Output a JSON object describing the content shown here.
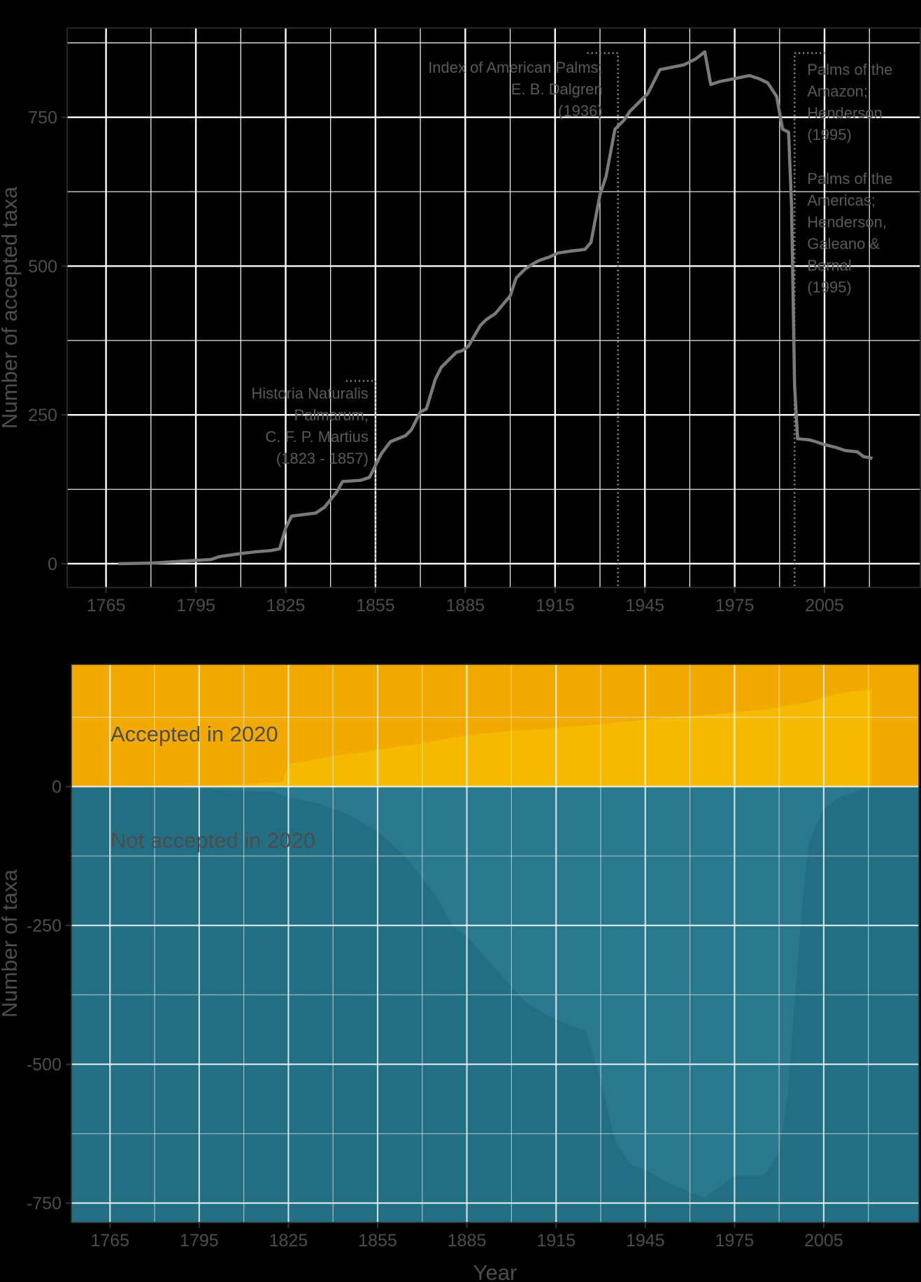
{
  "chart_data": [
    {
      "type": "line",
      "ylabel": "Number of accepted taxa",
      "xlabel": "",
      "xlim": [
        1752,
        2037
      ],
      "ylim": [
        -40,
        900
      ],
      "x_ticks": [
        1765,
        1795,
        1825,
        1855,
        1885,
        1915,
        1945,
        1975,
        2005
      ],
      "x_tick_labels": [
        "1765",
        "1795",
        "1825",
        "1855",
        "1885",
        "1915",
        "1945",
        "1975",
        "2005"
      ],
      "y_ticks": [
        0,
        250,
        500,
        750
      ],
      "y_tick_labels": [
        "0",
        "250",
        "500",
        "750"
      ],
      "grid": true,
      "line_color": "#7a7a7a",
      "series": [
        {
          "x": [
            1769,
            1780,
            1790,
            1800,
            1803,
            1810,
            1815,
            1820,
            1823,
            1825,
            1827,
            1835,
            1838,
            1842,
            1844,
            1850,
            1853,
            1855,
            1857,
            1860,
            1865,
            1867,
            1870,
            1872,
            1875,
            1877,
            1880,
            1882,
            1884,
            1886,
            1890,
            1892,
            1895,
            1900,
            1902,
            1905,
            1908,
            1910,
            1913,
            1916,
            1920,
            1925,
            1927,
            1930,
            1932,
            1935,
            1938,
            1940,
            1943,
            1946,
            1950,
            1955,
            1958,
            1962,
            1965,
            1967,
            1970,
            1975,
            1980,
            1983,
            1986,
            1989,
            1991,
            1993,
            1994,
            1995,
            1996,
            2000,
            2002,
            2005,
            2009,
            2012,
            2016,
            2018,
            2021
          ],
          "y": [
            0,
            1,
            4,
            7,
            12,
            17,
            20,
            22,
            25,
            60,
            80,
            85,
            95,
            120,
            138,
            140,
            145,
            165,
            185,
            205,
            215,
            225,
            255,
            260,
            310,
            330,
            345,
            355,
            358,
            365,
            400,
            410,
            420,
            450,
            480,
            495,
            505,
            510,
            515,
            522,
            525,
            528,
            540,
            620,
            650,
            730,
            745,
            760,
            775,
            790,
            830,
            835,
            838,
            848,
            860,
            805,
            810,
            815,
            820,
            815,
            808,
            785,
            730,
            725,
            600,
            300,
            210,
            208,
            205,
            200,
            195,
            190,
            188,
            180,
            177
          ]
        }
      ],
      "annotations": [
        {
          "lines": [
            "Historia Naturalis",
            "Palmarum,",
            "C. F. P. Martius",
            "(1823 - 1857)"
          ],
          "x": 1855,
          "y_top": 307
        },
        {
          "lines": [
            "Index of American Palms;",
            "E. B. Dalgren",
            "(1936)"
          ],
          "x": 1936,
          "y_top": 858
        },
        {
          "lines": [
            "Palms of the",
            "Amazon;",
            "Henderson",
            "(1995)"
          ],
          "x": 1995,
          "y_top": 858
        },
        {
          "lines": [
            "Palms of the",
            "Americas;",
            "Henderson,",
            "Galeano &",
            "Bernal",
            "(1995)"
          ],
          "x": 1995,
          "y_top": null
        }
      ]
    },
    {
      "type": "area",
      "ylabel": "Number of taxa",
      "xlabel": "Year",
      "xlim": [
        1752,
        2037
      ],
      "ylim": [
        -785,
        220
      ],
      "x_ticks": [
        1765,
        1795,
        1825,
        1855,
        1885,
        1915,
        1945,
        1975,
        2005
      ],
      "x_tick_labels": [
        "1765",
        "1795",
        "1825",
        "1855",
        "1885",
        "1915",
        "1945",
        "1975",
        "2005"
      ],
      "y_ticks": [
        0,
        -250,
        -500,
        -750
      ],
      "y_tick_labels": [
        "0",
        "-250",
        "-500",
        "-750"
      ],
      "grid": true,
      "background_top": "#f2a900",
      "background_bottom": "#226f84",
      "series": [
        {
          "name": "Accepted in 2020",
          "color": "#f6bb00",
          "x": [
            1769,
            1800,
            1823,
            1825,
            1830,
            1840,
            1850,
            1860,
            1870,
            1880,
            1890,
            1900,
            1910,
            1920,
            1930,
            1940,
            1950,
            1960,
            1970,
            1980,
            1990,
            2000,
            2010,
            2021
          ],
          "y": [
            0,
            2,
            8,
            40,
            45,
            55,
            62,
            70,
            78,
            88,
            95,
            100,
            103,
            108,
            112,
            118,
            123,
            127,
            131,
            136,
            143,
            152,
            168,
            175
          ]
        },
        {
          "name": "Not accepted in 2020",
          "color": "#2a788e",
          "x": [
            1769,
            1800,
            1820,
            1825,
            1835,
            1845,
            1855,
            1865,
            1875,
            1880,
            1885,
            1895,
            1905,
            1915,
            1925,
            1930,
            1935,
            1940,
            1945,
            1955,
            1965,
            1975,
            1985,
            1990,
            1993,
            1995,
            1998,
            2000,
            2005,
            2010,
            2021
          ],
          "y": [
            0,
            -5,
            -10,
            -20,
            -30,
            -50,
            -80,
            -130,
            -200,
            -250,
            -270,
            -330,
            -390,
            -420,
            -440,
            -530,
            -640,
            -680,
            -690,
            -720,
            -740,
            -700,
            -700,
            -660,
            -550,
            -400,
            -200,
            -100,
            -40,
            -20,
            0
          ]
        }
      ]
    }
  ]
}
